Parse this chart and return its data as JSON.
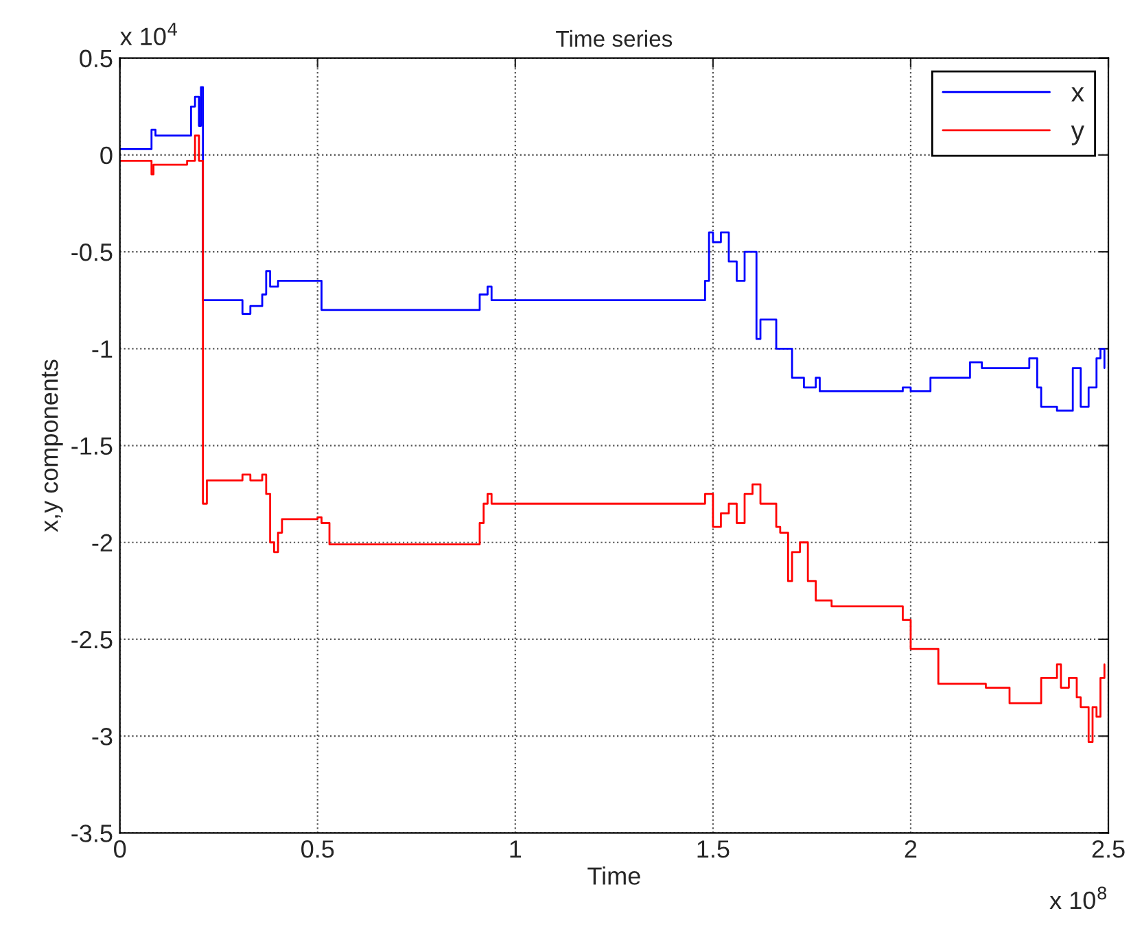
{
  "chart_data": {
    "type": "step",
    "title": "Time series",
    "xlabel": "Time",
    "ylabel": "x,y components",
    "annotations": [
      "x 10$^{4}$",
      "x 10$^{8}$"
    ],
    "xlim": [
      0,
      2.5
    ],
    "ylim": [
      -3.5,
      0.5
    ],
    "xticks": [
      0,
      0.5,
      1,
      1.5,
      2,
      2.5
    ],
    "yticks": [
      -3.5,
      -3,
      -2.5,
      -2,
      -1.5,
      -1,
      -0.5,
      0,
      0.5
    ],
    "grid": true,
    "legend": "top right",
    "line_style": "solid",
    "marker": "none",
    "series": [
      {
        "name": "x",
        "color": "#0000ff",
        "x": [
          0,
          0.08,
          0.09,
          0.17,
          0.18,
          0.19,
          0.2,
          0.205,
          0.21,
          0.3,
          0.31,
          0.33,
          0.36,
          0.37,
          0.38,
          0.4,
          0.5,
          0.51,
          0.52,
          0.9,
          0.91,
          0.93,
          0.94,
          1.47,
          1.48,
          1.49,
          1.5,
          1.52,
          1.54,
          1.56,
          1.58,
          1.6,
          1.61,
          1.62,
          1.64,
          1.66,
          1.7,
          1.73,
          1.76,
          1.77,
          1.8,
          1.98,
          2.0,
          2.04,
          2.05,
          2.14,
          2.15,
          2.18,
          2.24,
          2.3,
          2.32,
          2.33,
          2.37,
          2.4,
          2.41,
          2.43,
          2.45,
          2.47,
          2.48,
          2.49
        ],
        "values": [
          0.03,
          0.13,
          0.1,
          0.1,
          0.25,
          0.3,
          0.15,
          0.35,
          -0.75,
          -0.75,
          -0.82,
          -0.78,
          -0.72,
          -0.6,
          -0.68,
          -0.65,
          -0.65,
          -0.8,
          -0.8,
          -0.8,
          -0.72,
          -0.68,
          -0.75,
          -0.75,
          -0.65,
          -0.4,
          -0.45,
          -0.4,
          -0.55,
          -0.65,
          -0.5,
          -0.5,
          -0.95,
          -0.85,
          -0.85,
          -1.0,
          -1.15,
          -1.2,
          -1.15,
          -1.22,
          -1.22,
          -1.2,
          -1.22,
          -1.22,
          -1.15,
          -1.15,
          -1.07,
          -1.1,
          -1.1,
          -1.05,
          -1.2,
          -1.3,
          -1.32,
          -1.32,
          -1.1,
          -1.3,
          -1.2,
          -1.05,
          -1.0,
          -1.1
        ]
      },
      {
        "name": "y",
        "color": "#ff0000",
        "x": [
          0,
          0.08,
          0.085,
          0.17,
          0.19,
          0.2,
          0.21,
          0.22,
          0.3,
          0.31,
          0.33,
          0.36,
          0.37,
          0.38,
          0.39,
          0.4,
          0.41,
          0.5,
          0.51,
          0.53,
          0.9,
          0.91,
          0.92,
          0.93,
          0.94,
          1.47,
          1.48,
          1.5,
          1.52,
          1.54,
          1.56,
          1.58,
          1.6,
          1.62,
          1.64,
          1.66,
          1.67,
          1.69,
          1.7,
          1.72,
          1.74,
          1.76,
          1.8,
          1.97,
          1.98,
          2.0,
          2.06,
          2.07,
          2.18,
          2.19,
          2.24,
          2.25,
          2.32,
          2.33,
          2.37,
          2.38,
          2.4,
          2.42,
          2.43,
          2.45,
          2.46,
          2.47,
          2.48,
          2.49
        ],
        "values": [
          -0.03,
          -0.1,
          -0.05,
          -0.03,
          0.1,
          -0.03,
          -1.8,
          -1.68,
          -1.68,
          -1.65,
          -1.68,
          -1.65,
          -1.75,
          -2.0,
          -2.05,
          -1.95,
          -1.88,
          -1.87,
          -1.9,
          -2.01,
          -2.01,
          -1.9,
          -1.8,
          -1.75,
          -1.8,
          -1.8,
          -1.75,
          -1.92,
          -1.85,
          -1.8,
          -1.9,
          -1.75,
          -1.7,
          -1.8,
          -1.8,
          -1.92,
          -1.95,
          -2.2,
          -2.05,
          -2.0,
          -2.2,
          -2.3,
          -2.33,
          -2.33,
          -2.4,
          -2.55,
          -2.55,
          -2.73,
          -2.73,
          -2.75,
          -2.75,
          -2.83,
          -2.83,
          -2.7,
          -2.63,
          -2.75,
          -2.7,
          -2.8,
          -2.85,
          -3.03,
          -2.85,
          -2.9,
          -2.7,
          -2.63
        ]
      }
    ]
  }
}
